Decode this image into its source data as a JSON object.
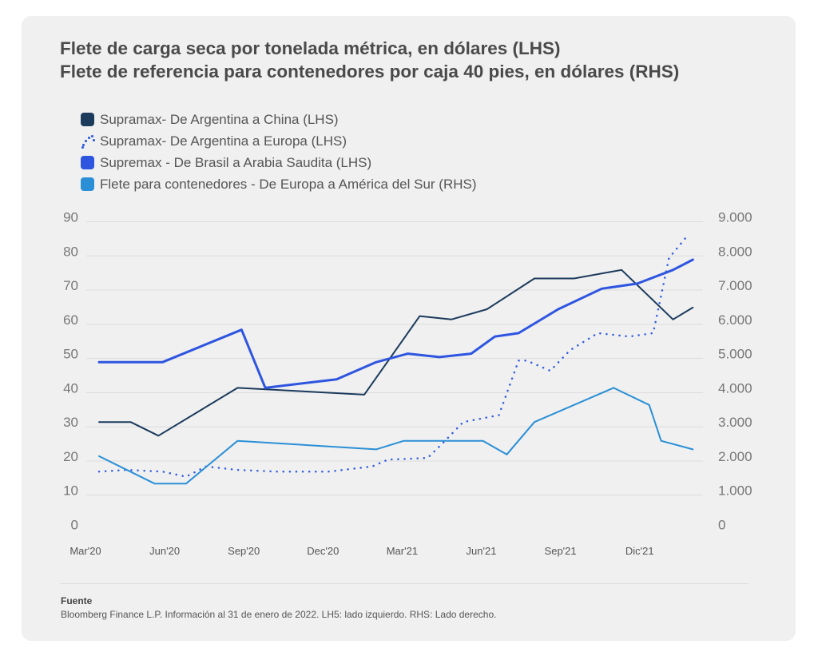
{
  "chart_data": {
    "type": "line",
    "title": [
      "Flete de carga seca por tonelada métrica, en dólares (LHS)",
      "Flete de referencia para contenedores por caja 40 pies, en dólares (RHS)"
    ],
    "categories": [
      "Mar'20",
      "Jun'20",
      "Sep'20",
      "Dec'20",
      "Mar'21",
      "Jun'21",
      "Sep'21",
      "Dic'21"
    ],
    "y_left": {
      "ylim": [
        0,
        90
      ],
      "ticks": [
        "90",
        "80",
        "70",
        "60",
        "50",
        "40",
        "30",
        "20",
        "10",
        "0"
      ]
    },
    "y_right": {
      "ylim": [
        0,
        9000
      ],
      "ticks": [
        "9.000",
        "8.000",
        "7.000",
        "6.000",
        "5.000",
        "4.000",
        "3.000",
        "2.000",
        "1.000",
        "0"
      ]
    },
    "series": [
      {
        "name": "Supramax- De Argentina a China (LHS)",
        "axis": "left",
        "color": "#1b3a5c",
        "style": "solid",
        "x": [
          0,
          0.4,
          0.75,
          1.75,
          3.35,
          4.05,
          4.45,
          4.9,
          5.5,
          6.0,
          6.6,
          7.25,
          7.5
        ],
        "y": [
          30,
          30,
          26,
          40,
          38,
          61,
          60,
          63,
          72,
          72,
          74.5,
          60,
          63.5
        ]
      },
      {
        "name": "Supramax- De Argentina a Europa (LHS)",
        "axis": "left",
        "color": "#2f5ce0",
        "style": "dotted",
        "x": [
          0,
          0.35,
          0.8,
          1.1,
          1.35,
          1.75,
          2.25,
          2.9,
          3.45,
          3.65,
          4.15,
          4.35,
          4.6,
          5.05,
          5.3,
          5.4,
          5.7,
          5.95,
          6.3,
          6.7,
          7.0,
          7.2,
          7.45
        ],
        "y": [
          15.5,
          16,
          15.5,
          14,
          17,
          16,
          15.5,
          15.5,
          17,
          19,
          19.5,
          24,
          30,
          32,
          48,
          48,
          45,
          51,
          56,
          55,
          56,
          78,
          85
        ]
      },
      {
        "name": "Supremax - De Brasil a Arabia Saudita (LHS)",
        "axis": "left",
        "color": "#2e55e0",
        "style": "solid",
        "x": [
          0,
          0.8,
          1.8,
          2.1,
          3.0,
          3.5,
          3.9,
          4.3,
          4.7,
          5.0,
          5.3,
          5.8,
          6.35,
          6.8,
          7.25,
          7.5
        ],
        "y": [
          47.5,
          47.5,
          57,
          40,
          42.5,
          47.5,
          50,
          49,
          50,
          55,
          56,
          63,
          69,
          70.5,
          74.5,
          77.5
        ]
      },
      {
        "name": "Flete para contenedores - De Europa a América del Sur (RHS)",
        "axis": "right",
        "color": "#2a8fd6",
        "style": "solid",
        "x": [
          0,
          0.7,
          1.1,
          1.75,
          3.5,
          3.85,
          4.85,
          5.15,
          5.5,
          6.5,
          6.95,
          7.1,
          7.5
        ],
        "y": [
          2000,
          1200,
          1200,
          2450,
          2200,
          2450,
          2450,
          2050,
          3000,
          4000,
          3500,
          2450,
          2200
        ]
      }
    ],
    "legend": [
      {
        "label": "Supramax- De Argentina a China (LHS)",
        "color": "#1b3a5c",
        "style": "solid"
      },
      {
        "label": "Supramax- De Argentina a Europa (LHS)",
        "color": "#2f5ce0",
        "style": "dotted"
      },
      {
        "label": "Supremax - De Brasil a Arabia Saudita (LHS)",
        "color": "#2e55e0",
        "style": "solid"
      },
      {
        "label": "Flete para contenedores - De Europa a América del Sur (RHS)",
        "color": "#2a8fd6",
        "style": "solid"
      }
    ]
  },
  "source": {
    "label": "Fuente",
    "text": "Bloomberg Finance L.P. Información al 31 de enero de 2022. LH5: lado izquierdo. RHS: Lado derecho."
  }
}
